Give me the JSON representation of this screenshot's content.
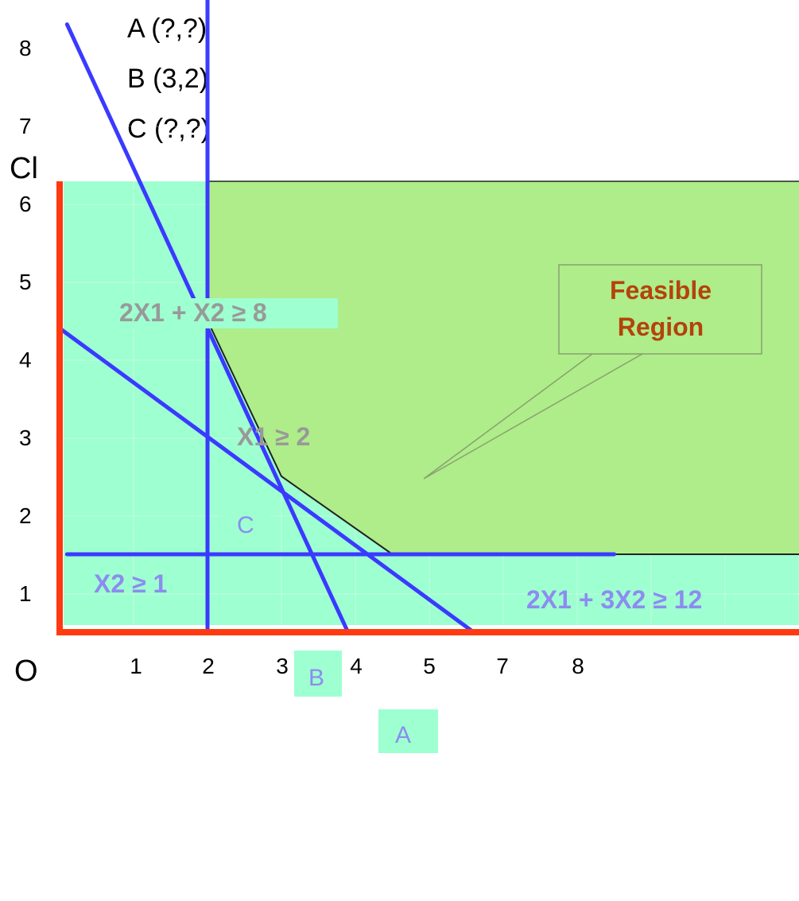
{
  "points_list": [
    "A (?,?)",
    "B (3,2)",
    "C (?,?)"
  ],
  "chart_data": {
    "type": "line",
    "title": "",
    "ylabel": "Cl",
    "origin_label": "O",
    "x_ticks": [
      "1",
      "2",
      "3",
      "4",
      "5",
      "7",
      "8"
    ],
    "y_ticks": [
      "1",
      "2",
      "3",
      "4",
      "5",
      "6",
      "7",
      "8"
    ],
    "constraints": [
      {
        "label": "2X1 + X2 ≥ 8",
        "from": [
          0.1,
          7.8
        ],
        "to": [
          3.9,
          0
        ]
      },
      {
        "label": "2X1 + 3X2 ≥ 12",
        "from": [
          0,
          3.9
        ],
        "to": [
          5.6,
          0
        ]
      },
      {
        "label": "X1 ≥ 2",
        "from": [
          2,
          8.3
        ],
        "to": [
          2,
          0
        ]
      },
      {
        "label": "X2 ≥ 1",
        "from": [
          0.1,
          1
        ],
        "to": [
          7.5,
          1
        ]
      }
    ],
    "vertices": [
      {
        "label": "C",
        "x": 2,
        "y": 4
      },
      {
        "label": "B",
        "x": 3,
        "y": 2
      },
      {
        "label": "A",
        "x": 4.5,
        "y": 1
      }
    ],
    "feasible_boundary": [
      [
        2,
        9.3
      ],
      [
        2,
        4
      ],
      [
        3,
        2
      ],
      [
        4.5,
        1
      ],
      [
        10.1,
        1
      ],
      [
        10.1,
        9.3
      ]
    ],
    "feasible_label": [
      "Feasible",
      "Region"
    ],
    "colors": {
      "background": "#9effd0",
      "feasible": "#aeed89",
      "axis": "#ff3a10",
      "constraint": "#3a3aff",
      "label_text": "#8c8cf0",
      "gray_text": "#999999",
      "feasible_text": "#b5420c"
    }
  }
}
